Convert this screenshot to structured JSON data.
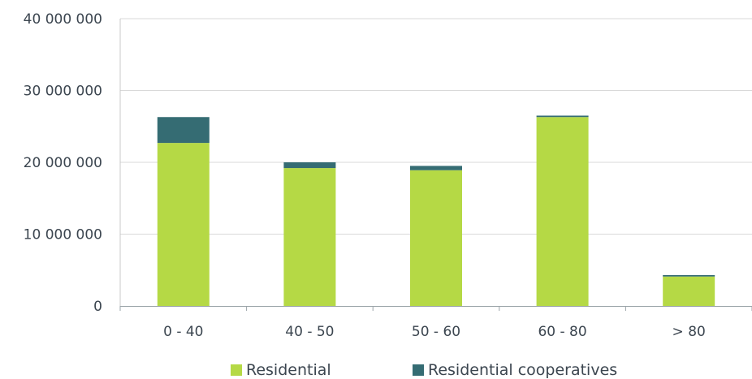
{
  "chart_data": {
    "type": "bar",
    "stacked": true,
    "categories": [
      "0 - 40",
      "40 - 50",
      "50 - 60",
      "60 - 80",
      "> 80"
    ],
    "series": [
      {
        "name": "Residential",
        "color": "#b5d945",
        "values": [
          22700000,
          19200000,
          18900000,
          26300000,
          4100000
        ]
      },
      {
        "name": "Residential cooperatives",
        "color": "#356c73",
        "values": [
          3600000,
          800000,
          600000,
          200000,
          200000
        ]
      }
    ],
    "ylim": [
      0,
      40000000
    ],
    "yticks": [
      0,
      10000000,
      20000000,
      30000000,
      40000000
    ],
    "ytick_labels": [
      "0",
      "10 000 000",
      "20 000 000",
      "30 000 000",
      "40 000 000"
    ],
    "grid": true,
    "legend_position": "bottom",
    "title": "",
    "xlabel": "",
    "ylabel": ""
  }
}
